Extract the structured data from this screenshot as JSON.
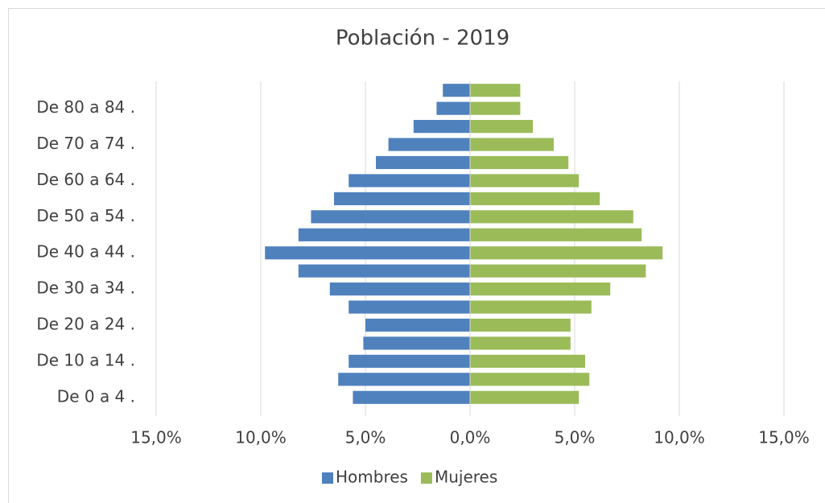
{
  "chart_data": {
    "type": "bar",
    "orientation": "horizontal",
    "title": "Población - 2019",
    "categories": [
      "De 0 a 4 .",
      null,
      "De 10 a 14 .",
      null,
      "De 20 a 24 .",
      null,
      "De 30 a 34 .",
      null,
      "De 40 a 44 .",
      null,
      "De 50 a 54 .",
      null,
      "De 60 a 64 .",
      null,
      "De 70 a 74 .",
      null,
      "De 80 a 84 .",
      null
    ],
    "series": [
      {
        "name": "Hombres",
        "color": "#4f81bd",
        "values": [
          -5.6,
          -6.3,
          -5.8,
          -5.1,
          -5.0,
          -5.8,
          -6.7,
          -8.2,
          -9.8,
          -8.2,
          -7.6,
          -6.5,
          -5.8,
          -4.5,
          -3.9,
          -2.7,
          -1.6,
          -1.3
        ]
      },
      {
        "name": "Mujeres",
        "color": "#9bbb59",
        "values": [
          5.2,
          5.7,
          5.5,
          4.8,
          4.8,
          5.8,
          6.7,
          8.4,
          9.2,
          8.2,
          7.8,
          6.2,
          5.2,
          4.7,
          4.0,
          3.0,
          2.4,
          2.4
        ]
      }
    ],
    "xlim": [
      -15,
      15
    ],
    "xticks": [
      {
        "value": -15,
        "label": "15,0%"
      },
      {
        "value": -10,
        "label": "10,0%"
      },
      {
        "value": -5,
        "label": "5,0%"
      },
      {
        "value": 0,
        "label": "0,0%"
      },
      {
        "value": 5,
        "label": "5,0%"
      },
      {
        "value": 10,
        "label": "10,0%"
      },
      {
        "value": 15,
        "label": "15,0%"
      }
    ],
    "grid": true,
    "legend": "bottom"
  }
}
